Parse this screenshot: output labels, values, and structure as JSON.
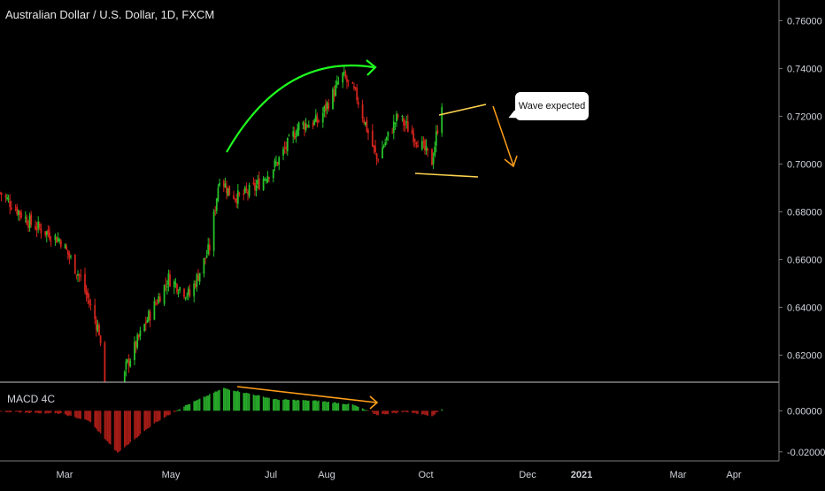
{
  "header": {
    "title": "Australian Dollar / U.S. Dollar, 1D, FXCM"
  },
  "annotation": {
    "label": "Wave expected"
  },
  "colors": {
    "up": "#26c22a",
    "down": "#d3241c",
    "green_arrow": "#1eff1e",
    "orange": "#ff9f1a",
    "yellow": "#ffd54f",
    "macd_pos": "#27a82a",
    "macd_neg": "#a51c17"
  },
  "chart_data": [
    {
      "type": "line",
      "name": "price",
      "ylim": [
        0.60866,
        0.76866
      ],
      "y_ticks": [
        "0.76000",
        "0.74000",
        "0.72000",
        "0.70000",
        "0.68000",
        "0.66000",
        "0.64000",
        "0.62000"
      ],
      "x_ticks": [
        "Mar",
        "May",
        "Jul",
        "Aug",
        "Oct",
        "Dec",
        "2021",
        "Mar",
        "Apr"
      ],
      "close_waypoints": [
        [
          "2020-01-02",
          0.688
        ],
        [
          "2020-01-24",
          0.675
        ],
        [
          "2020-02-14",
          0.668
        ],
        [
          "2020-02-28",
          0.652
        ],
        [
          "2020-03-12",
          0.63
        ],
        [
          "2020-03-19",
          0.575
        ],
        [
          "2020-03-31",
          0.615
        ],
        [
          "2020-04-15",
          0.635
        ],
        [
          "2020-04-30",
          0.652
        ],
        [
          "2020-05-15",
          0.645
        ],
        [
          "2020-05-29",
          0.665
        ],
        [
          "2020-06-05",
          0.695
        ],
        [
          "2020-06-12",
          0.688
        ],
        [
          "2020-06-19",
          0.686
        ],
        [
          "2020-06-30",
          0.69
        ],
        [
          "2020-07-15",
          0.7
        ],
        [
          "2020-07-31",
          0.716
        ],
        [
          "2020-08-14",
          0.718
        ],
        [
          "2020-08-31",
          0.737
        ],
        [
          "2020-09-10",
          0.728
        ],
        [
          "2020-09-24",
          0.702
        ],
        [
          "2020-10-09",
          0.72
        ],
        [
          "2020-10-23",
          0.71
        ],
        [
          "2020-11-02",
          0.701
        ],
        [
          "2020-11-09",
          0.726
        ]
      ]
    },
    {
      "type": "bar",
      "name": "MACD 4C",
      "ylim": [
        -0.0244,
        0.0139
      ],
      "y_ticks": [
        "0.00000",
        "-0.02000"
      ],
      "value_waypoints": [
        [
          "2020-01-02",
          -0.0004
        ],
        [
          "2020-02-14",
          -0.0014
        ],
        [
          "2020-03-05",
          -0.005
        ],
        [
          "2020-03-25",
          -0.0205
        ],
        [
          "2020-04-20",
          -0.006
        ],
        [
          "2020-05-11",
          0.0022
        ],
        [
          "2020-06-08",
          0.011
        ],
        [
          "2020-07-15",
          0.0055
        ],
        [
          "2020-08-14",
          0.0048
        ],
        [
          "2020-09-07",
          0.003
        ],
        [
          "2020-09-24",
          -0.002
        ],
        [
          "2020-10-15",
          -0.0005
        ],
        [
          "2020-11-02",
          -0.0025
        ],
        [
          "2020-11-09",
          0.0008
        ]
      ]
    }
  ]
}
